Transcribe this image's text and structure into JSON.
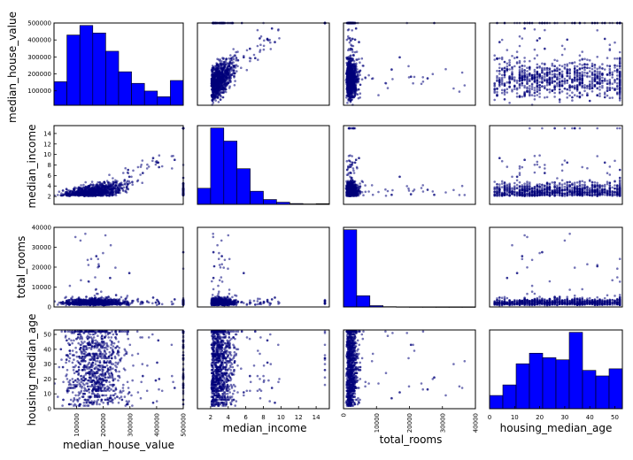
{
  "chart_data": {
    "type": "scatter_matrix",
    "variables": [
      "median_house_value",
      "median_income",
      "total_rooms",
      "housing_median_age"
    ],
    "ranges": {
      "median_house_value": [
        15000,
        500001
      ],
      "median_income": [
        0.5,
        15.5
      ],
      "total_rooms": [
        0,
        40000
      ],
      "housing_median_age": [
        0,
        53
      ]
    },
    "ticks": {
      "median_house_value": {
        "y": [
          100000,
          200000,
          300000,
          400000,
          500000
        ],
        "x": [
          100000,
          200000,
          300000,
          400000,
          500000
        ]
      },
      "median_income": {
        "y": [
          2,
          4,
          6,
          8,
          10,
          12,
          14
        ],
        "x": [
          2,
          4,
          6,
          8,
          10,
          12,
          14
        ]
      },
      "total_rooms": {
        "y": [
          0,
          10000,
          20000,
          30000,
          40000
        ],
        "x": [
          0,
          10000,
          20000,
          30000,
          40000
        ]
      },
      "housing_median_age": {
        "y": [
          0,
          10,
          20,
          30,
          40,
          50
        ],
        "x": [
          0,
          10,
          20,
          30,
          40,
          50
        ]
      }
    },
    "histograms": {
      "median_house_value": [
        1160,
        3460,
        3930,
        3560,
        2660,
        1650,
        1080,
        700,
        420,
        1220
      ],
      "median_income": [
        1200,
        5700,
        4720,
        2660,
        980,
        360,
        160,
        60,
        30,
        50
      ],
      "total_rooms": [
        17600,
        2550,
        300,
        70,
        30,
        15,
        10,
        5,
        3,
        2
      ],
      "housing_median_age": [
        500,
        900,
        1700,
        2100,
        1930,
        1850,
        2890,
        1450,
        1240,
        1510
      ]
    },
    "axis_labels": {
      "left": [
        "median_house_value",
        "median_income",
        "total_rooms",
        "housing_median_age"
      ],
      "bottom": [
        "median_house_value",
        "median_income",
        "total_rooms",
        "housing_median_age"
      ]
    },
    "marker_color": "#00007a",
    "bar_color": "#0000ff"
  }
}
